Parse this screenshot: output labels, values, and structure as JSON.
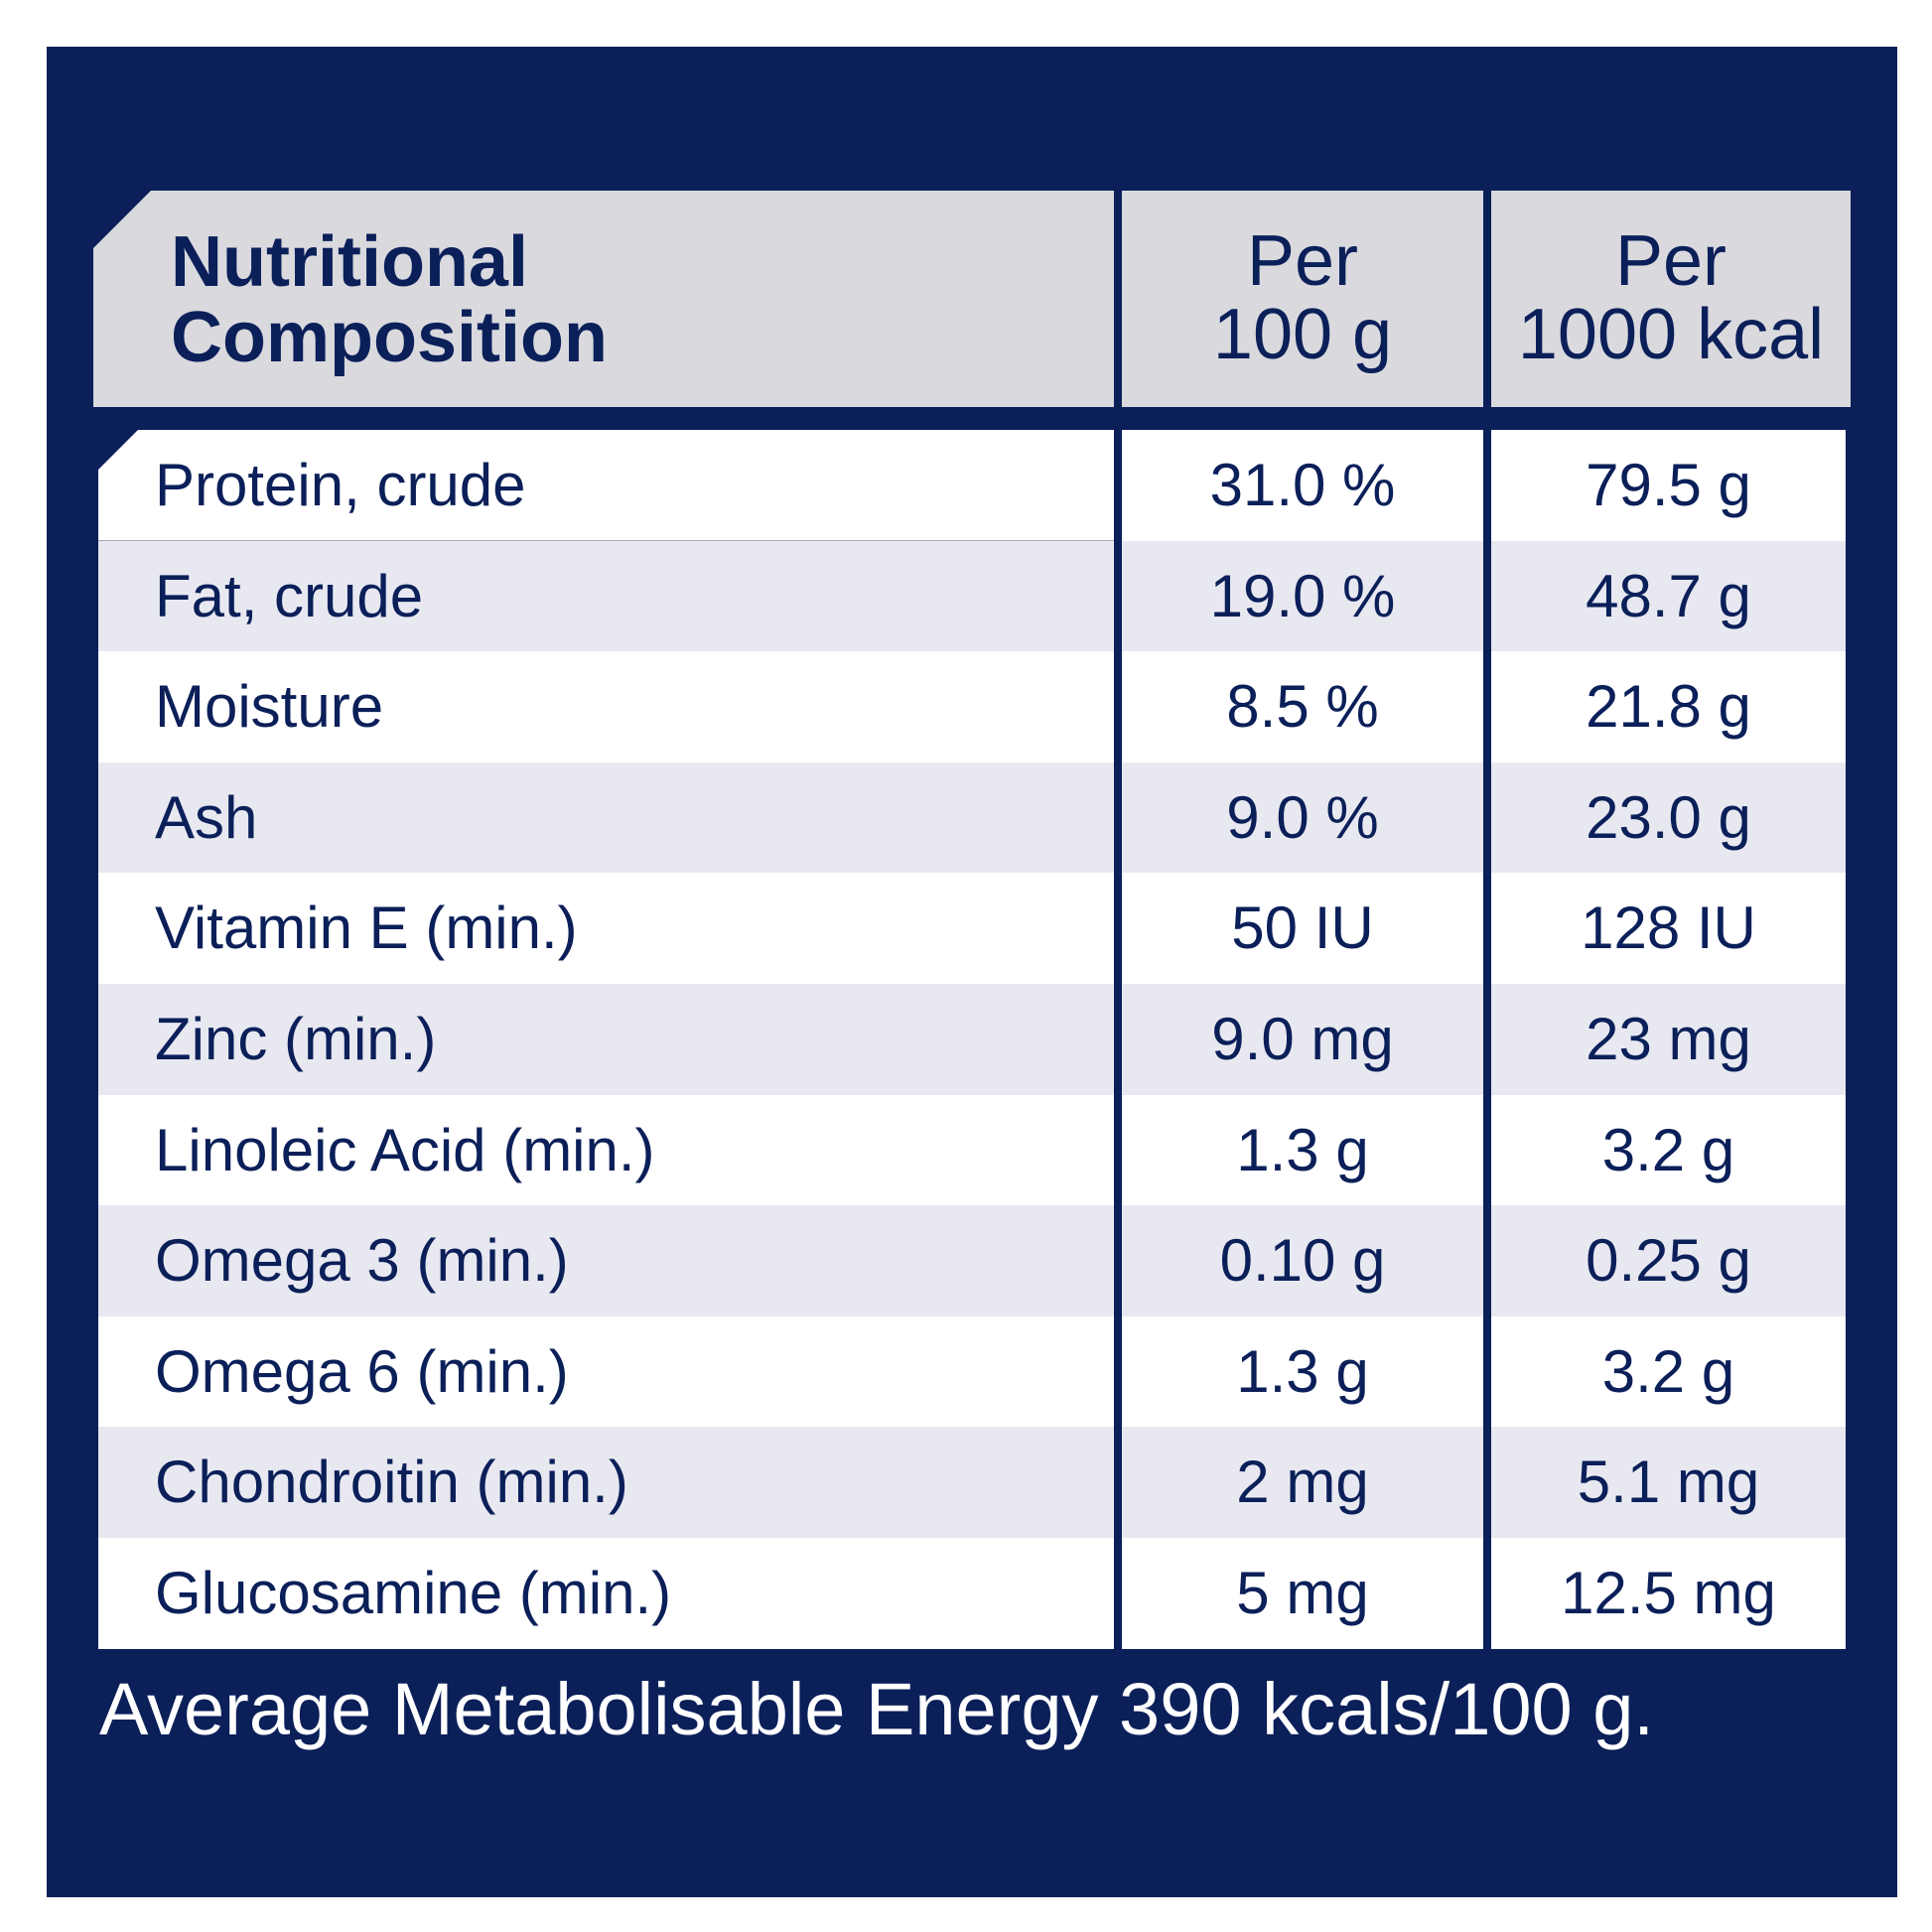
{
  "header": {
    "title_line1": "Nutritional",
    "title_line2": "Composition",
    "col1_line1": "Per",
    "col1_line2": "100 g",
    "col2_line1": "Per",
    "col2_line2": "1000 kcal"
  },
  "rows": [
    {
      "name": "Protein, crude",
      "per100g": "31.0 %",
      "per1000kcal": "79.5 g"
    },
    {
      "name": "Fat, crude",
      "per100g": "19.0 %",
      "per1000kcal": "48.7 g"
    },
    {
      "name": "Moisture",
      "per100g": "8.5 %",
      "per1000kcal": "21.8 g"
    },
    {
      "name": "Ash",
      "per100g": "9.0 %",
      "per1000kcal": "23.0 g"
    },
    {
      "name": "Vitamin E (min.)",
      "per100g": "50 IU",
      "per1000kcal": "128 IU"
    },
    {
      "name": "Zinc (min.)",
      "per100g": "9.0 mg",
      "per1000kcal": "23 mg"
    },
    {
      "name": "Linoleic Acid (min.)",
      "per100g": "1.3 g",
      "per1000kcal": "3.2 g"
    },
    {
      "name": "Omega 3 (min.)",
      "per100g": "0.10 g",
      "per1000kcal": "0.25 g"
    },
    {
      "name": "Omega 6 (min.)",
      "per100g": "1.3 g",
      "per1000kcal": "3.2 g"
    },
    {
      "name": "Chondroitin (min.)",
      "per100g": "2 mg",
      "per1000kcal": "5.1 mg"
    },
    {
      "name": "Glucosamine (min.)",
      "per100g": "5 mg",
      "per1000kcal": "12.5 mg"
    }
  ],
  "footer": "Average Metabolisable Energy 390 kcals/100 g.",
  "colors": {
    "panel": "#0b1f59",
    "header_bg": "#d9d9de",
    "row_alt": "#e8e8f1",
    "text": "#0b1f59"
  }
}
